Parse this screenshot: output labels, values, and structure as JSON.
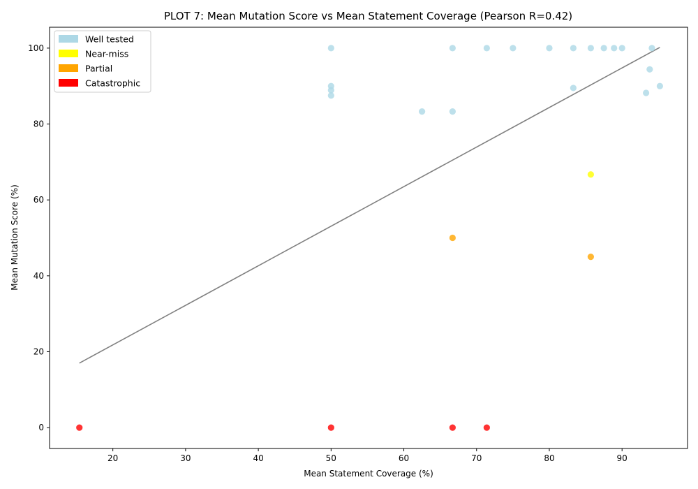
{
  "chart_data": {
    "type": "scatter",
    "title": "PLOT 7: Mean Mutation Score vs Mean Statement Coverage (Pearson R=0.42)",
    "xlabel": "Mean Statement Coverage (%)",
    "ylabel": "Mean Mutation Score (%)",
    "xlim": [
      11.3,
      99.0
    ],
    "ylim": [
      -5.5,
      105.5
    ],
    "xticks": [
      20,
      30,
      40,
      50,
      60,
      70,
      80,
      90
    ],
    "yticks": [
      0,
      20,
      40,
      60,
      80,
      100
    ],
    "grid": false,
    "legend_position": "top-left",
    "categories": [
      {
        "name": "Well tested",
        "color": "#add8e6"
      },
      {
        "name": "Near-miss",
        "color": "#ffff00"
      },
      {
        "name": "Partial",
        "color": "#ffa500"
      },
      {
        "name": "Catastrophic",
        "color": "#ff0000"
      }
    ],
    "points": [
      {
        "x": 50.0,
        "y": 100.0,
        "category": "Well tested"
      },
      {
        "x": 66.7,
        "y": 100.0,
        "category": "Well tested"
      },
      {
        "x": 71.4,
        "y": 100.0,
        "category": "Well tested"
      },
      {
        "x": 75.0,
        "y": 100.0,
        "category": "Well tested"
      },
      {
        "x": 80.0,
        "y": 100.0,
        "category": "Well tested"
      },
      {
        "x": 83.3,
        "y": 100.0,
        "category": "Well tested"
      },
      {
        "x": 85.7,
        "y": 100.0,
        "category": "Well tested"
      },
      {
        "x": 87.5,
        "y": 100.0,
        "category": "Well tested"
      },
      {
        "x": 88.9,
        "y": 100.0,
        "category": "Well tested"
      },
      {
        "x": 90.0,
        "y": 100.0,
        "category": "Well tested"
      },
      {
        "x": 94.1,
        "y": 100.0,
        "category": "Well tested"
      },
      {
        "x": 50.0,
        "y": 90.0,
        "category": "Well tested"
      },
      {
        "x": 50.0,
        "y": 88.9,
        "category": "Well tested"
      },
      {
        "x": 50.0,
        "y": 87.5,
        "category": "Well tested"
      },
      {
        "x": 62.5,
        "y": 83.3,
        "category": "Well tested"
      },
      {
        "x": 66.7,
        "y": 83.3,
        "category": "Well tested"
      },
      {
        "x": 83.3,
        "y": 89.5,
        "category": "Well tested"
      },
      {
        "x": 93.3,
        "y": 88.2,
        "category": "Well tested"
      },
      {
        "x": 93.8,
        "y": 94.4,
        "category": "Well tested"
      },
      {
        "x": 95.2,
        "y": 90.0,
        "category": "Well tested"
      },
      {
        "x": 85.7,
        "y": 66.7,
        "category": "Near-miss"
      },
      {
        "x": 66.7,
        "y": 50.0,
        "category": "Partial"
      },
      {
        "x": 85.7,
        "y": 45.0,
        "category": "Partial"
      },
      {
        "x": 15.4,
        "y": 0.0,
        "category": "Catastrophic"
      },
      {
        "x": 50.0,
        "y": 0.0,
        "category": "Catastrophic"
      },
      {
        "x": 66.7,
        "y": 0.0,
        "category": "Catastrophic"
      },
      {
        "x": 71.4,
        "y": 0.0,
        "category": "Catastrophic"
      }
    ],
    "trend_line": {
      "x": [
        15.4,
        95.2
      ],
      "y": [
        17.0,
        100.2
      ],
      "color": "#808080"
    }
  }
}
